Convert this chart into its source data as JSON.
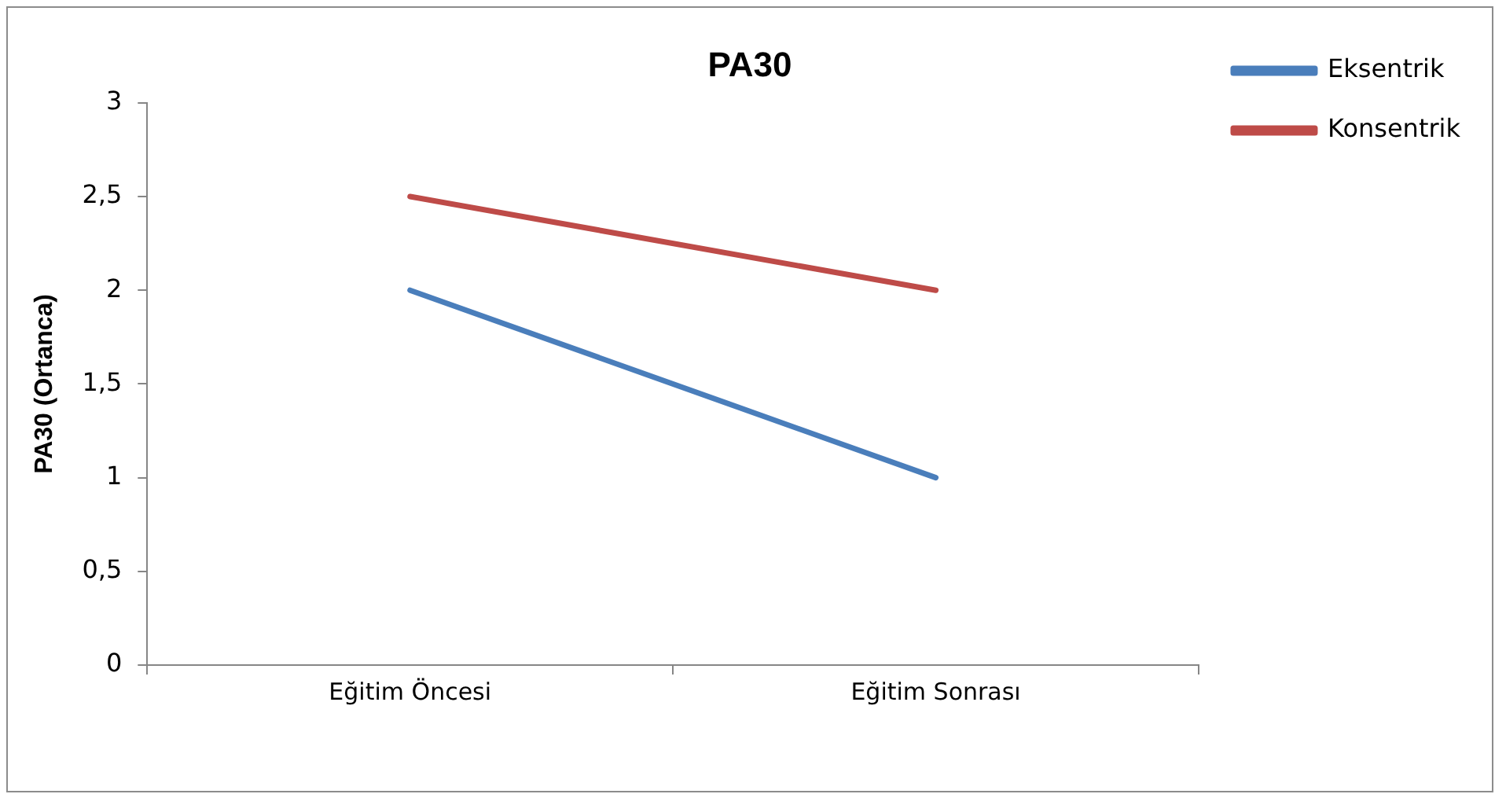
{
  "chart_data": {
    "type": "line",
    "title": "PA30",
    "ylabel": "PA30 (Ortanca)",
    "categories": [
      "Eğitim Öncesi",
      "Eğitim Sonrası"
    ],
    "series": [
      {
        "name": "Eksentrik",
        "color": "#4a7ebb",
        "values": [
          2,
          1
        ]
      },
      {
        "name": "Konsentrik",
        "color": "#be4b48",
        "values": [
          2.5,
          2
        ]
      }
    ],
    "ylim": [
      0,
      3
    ],
    "yticks": [
      0,
      {
        "value": 0.5,
        "label": "0,5"
      },
      1,
      {
        "value": 1.5,
        "label": "1,5"
      },
      2,
      {
        "value": 2.5,
        "label": "2,5"
      },
      3
    ],
    "grid": false,
    "legend": "top right",
    "marker": "none",
    "line_style": "solid"
  }
}
